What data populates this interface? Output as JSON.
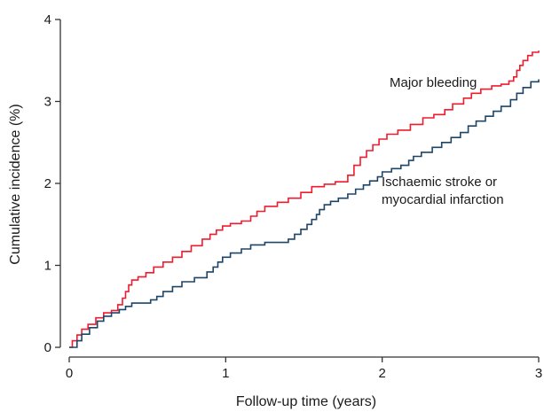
{
  "chart_data": {
    "type": "line",
    "step": true,
    "title": "",
    "xlabel": "Follow-up time (years)",
    "ylabel": "Cumulative incidence (%)",
    "xlim": [
      0,
      3
    ],
    "ylim": [
      0,
      4
    ],
    "xticks": [
      0,
      1,
      2,
      3
    ],
    "yticks": [
      0,
      1,
      2,
      3,
      4
    ],
    "grid": false,
    "legend": "none (series labelled directly on plot)",
    "series": [
      {
        "name": "Major bleeding",
        "label_lines": [
          "Major bleeding"
        ],
        "color": "#ee1c2e",
        "x": [
          0,
          0.02,
          0.05,
          0.08,
          0.12,
          0.17,
          0.22,
          0.27,
          0.31,
          0.34,
          0.36,
          0.38,
          0.4,
          0.44,
          0.49,
          0.54,
          0.6,
          0.66,
          0.72,
          0.78,
          0.85,
          0.9,
          0.94,
          0.98,
          1.03,
          1.1,
          1.16,
          1.2,
          1.25,
          1.33,
          1.4,
          1.48,
          1.55,
          1.63,
          1.7,
          1.78,
          1.82,
          1.86,
          1.9,
          1.94,
          1.98,
          2.03,
          2.1,
          2.18,
          2.26,
          2.33,
          2.4,
          2.45,
          2.52,
          2.57,
          2.63,
          2.7,
          2.76,
          2.81,
          2.84,
          2.86,
          2.88,
          2.9,
          2.93,
          2.96,
          3.0
        ],
        "y": [
          0,
          0.08,
          0.15,
          0.22,
          0.28,
          0.36,
          0.42,
          0.45,
          0.52,
          0.6,
          0.68,
          0.76,
          0.82,
          0.86,
          0.91,
          0.98,
          1.04,
          1.1,
          1.17,
          1.24,
          1.32,
          1.38,
          1.43,
          1.48,
          1.51,
          1.54,
          1.6,
          1.66,
          1.72,
          1.77,
          1.82,
          1.89,
          1.96,
          1.99,
          2.02,
          2.1,
          2.22,
          2.32,
          2.4,
          2.47,
          2.54,
          2.6,
          2.65,
          2.72,
          2.8,
          2.84,
          2.9,
          2.97,
          3.04,
          3.1,
          3.15,
          3.19,
          3.21,
          3.25,
          3.3,
          3.38,
          3.44,
          3.5,
          3.56,
          3.6,
          3.62
        ]
      },
      {
        "name": "Ischaemic stroke or myocardial infarction",
        "label_lines": [
          "Ischaemic stroke or",
          "myocardial infarction"
        ],
        "color": "#1d4568",
        "x": [
          0,
          0.05,
          0.08,
          0.13,
          0.18,
          0.22,
          0.27,
          0.32,
          0.36,
          0.4,
          0.52,
          0.56,
          0.6,
          0.66,
          0.72,
          0.8,
          0.88,
          0.92,
          0.95,
          0.98,
          1.03,
          1.1,
          1.16,
          1.25,
          1.4,
          1.44,
          1.48,
          1.52,
          1.55,
          1.58,
          1.6,
          1.63,
          1.67,
          1.72,
          1.78,
          1.83,
          1.88,
          1.92,
          1.97,
          2.0,
          2.06,
          2.12,
          2.17,
          2.2,
          2.25,
          2.32,
          2.38,
          2.44,
          2.5,
          2.55,
          2.6,
          2.66,
          2.71,
          2.76,
          2.82,
          2.86,
          2.9,
          2.95,
          3.0
        ],
        "y": [
          0,
          0.08,
          0.16,
          0.24,
          0.32,
          0.38,
          0.42,
          0.46,
          0.5,
          0.54,
          0.58,
          0.62,
          0.68,
          0.74,
          0.8,
          0.85,
          0.92,
          0.98,
          1.04,
          1.1,
          1.15,
          1.2,
          1.25,
          1.28,
          1.32,
          1.38,
          1.44,
          1.5,
          1.56,
          1.62,
          1.68,
          1.74,
          1.78,
          1.82,
          1.87,
          1.93,
          1.98,
          2.03,
          2.08,
          2.14,
          2.18,
          2.22,
          2.28,
          2.33,
          2.38,
          2.44,
          2.5,
          2.56,
          2.62,
          2.7,
          2.76,
          2.82,
          2.88,
          2.94,
          3.02,
          3.1,
          3.17,
          3.24,
          3.27
        ]
      }
    ]
  }
}
